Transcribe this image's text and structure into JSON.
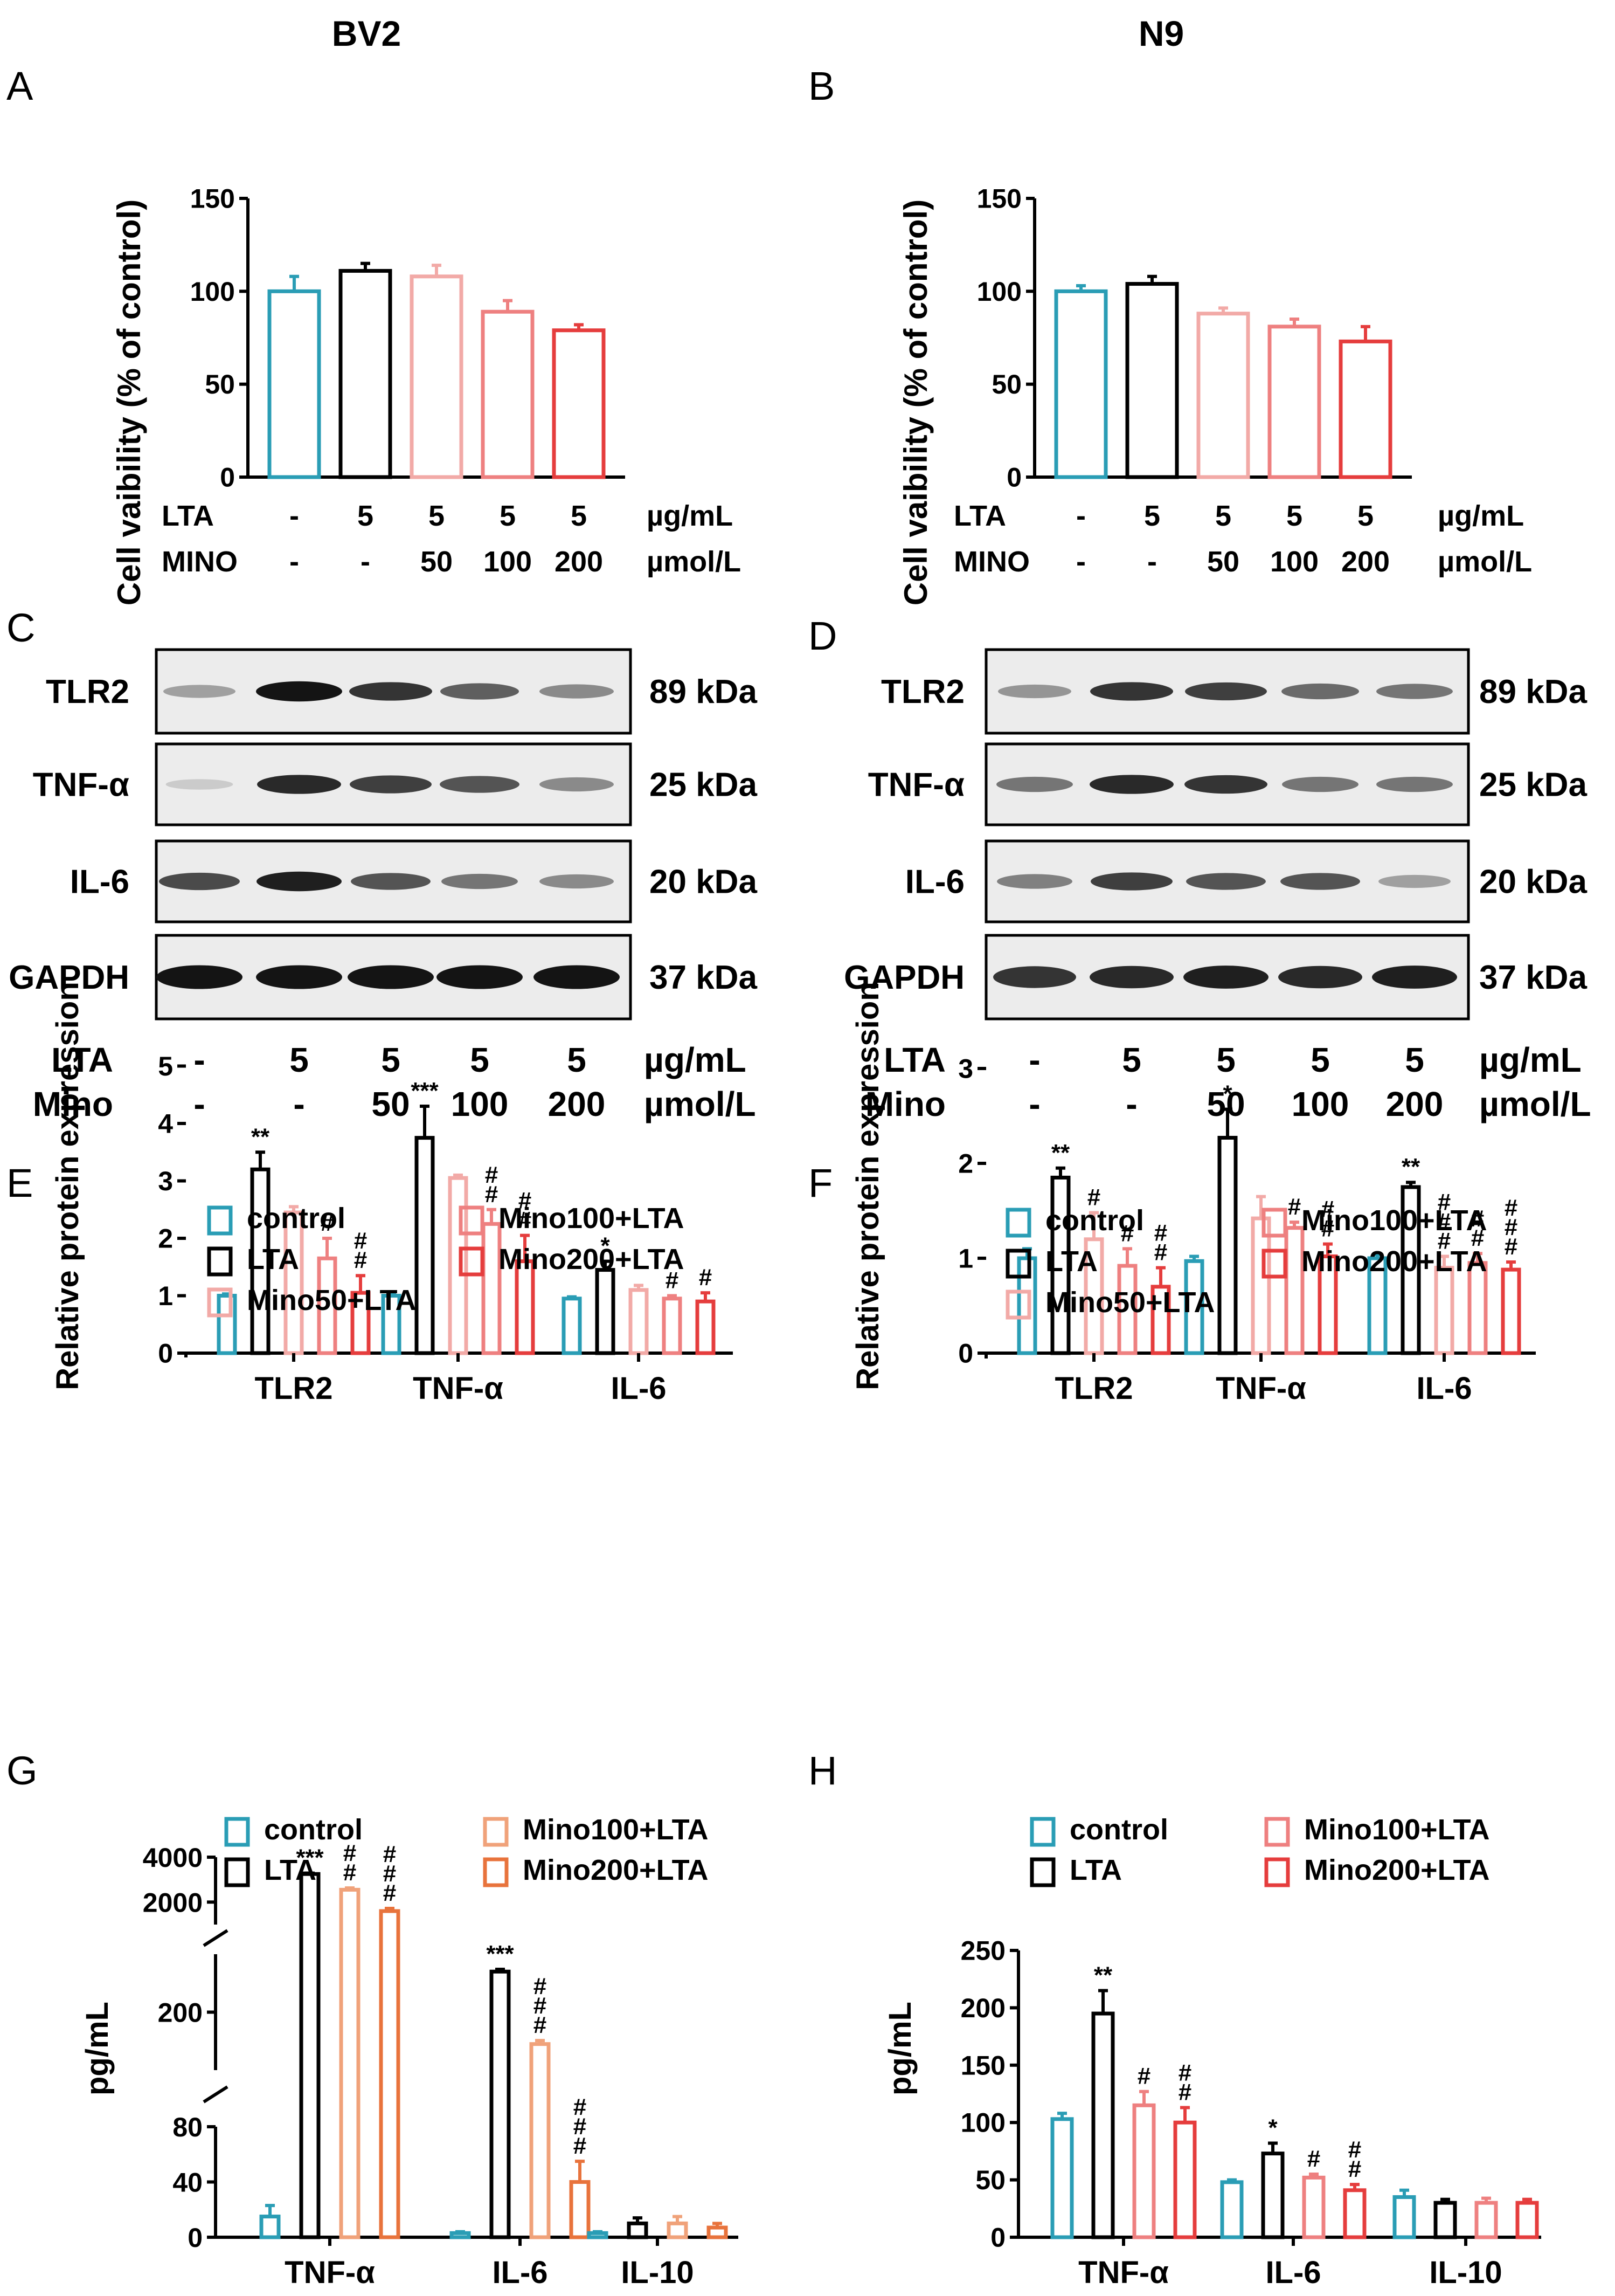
{
  "colors": {
    "control": "#2a9db5",
    "lta": "#000000",
    "mino50": "#f2aaa7",
    "mino100": "#ee8080",
    "mino200": "#e53d3d",
    "mino100_orange": "#f0a27a",
    "mino200_orange": "#e8733c",
    "blot_bg": "#ececec",
    "band": "#141414"
  },
  "columns": {
    "left_title": "BV2",
    "right_title": "N9"
  },
  "panel_letters": [
    "A",
    "B",
    "C",
    "D",
    "E",
    "F",
    "G",
    "H"
  ],
  "treatment_rows": {
    "AB": {
      "row1_label": "LTA",
      "row1_values": [
        "-",
        "5",
        "5",
        "5",
        "5"
      ],
      "row1_unit": "µg/mL",
      "row2_label": "MINO",
      "row2_values": [
        "-",
        "-",
        "50",
        "100",
        "200"
      ],
      "row2_unit": "µmol/L"
    },
    "CD": {
      "row1_label": "LTA",
      "row1_values": [
        "-",
        "5",
        "5",
        "5",
        "5"
      ],
      "row1_unit": "µg/mL",
      "row2_label": "Mino",
      "row2_values": [
        "-",
        "-",
        "50",
        "100",
        "200"
      ],
      "row2_unit": "µmol/L"
    }
  },
  "blots": {
    "proteins": [
      "TLR2",
      "TNF-α",
      "IL-6",
      "GAPDH"
    ],
    "sizes": [
      "89 kDa",
      "25 kDa",
      "20 kDa",
      "37 kDa"
    ],
    "C_intensity": [
      [
        0.35,
        1.0,
        0.85,
        0.65,
        0.45
      ],
      [
        0.12,
        0.9,
        0.8,
        0.7,
        0.45
      ],
      [
        0.75,
        0.95,
        0.7,
        0.55,
        0.45
      ],
      [
        1.0,
        1.0,
        1.0,
        1.0,
        1.0
      ]
    ],
    "D_intensity": [
      [
        0.4,
        0.85,
        0.8,
        0.6,
        0.55
      ],
      [
        0.55,
        0.9,
        0.85,
        0.55,
        0.55
      ],
      [
        0.5,
        0.8,
        0.7,
        0.7,
        0.35
      ],
      [
        0.85,
        0.9,
        0.95,
        0.9,
        0.95
      ]
    ]
  },
  "legend_labels": {
    "control": "control",
    "lta": "LTA",
    "mino50": "Mino50+LTA",
    "mino100": "Mino100+LTA",
    "mino200": "Mino200+LTA"
  },
  "chart_data": [
    {
      "panel": "A",
      "type": "bar",
      "title": "BV2",
      "ylabel": "Cell vaibility (% of control)",
      "ylim": [
        0,
        150
      ],
      "yticks": [
        0,
        50,
        100,
        150
      ],
      "categories": [
        "control",
        "LTA",
        "Mino50+LTA",
        "Mino100+LTA",
        "Mino200+LTA"
      ],
      "values": [
        100,
        111,
        108,
        89,
        79
      ],
      "errors": [
        8,
        4,
        6,
        6,
        3
      ]
    },
    {
      "panel": "B",
      "type": "bar",
      "title": "N9",
      "ylabel": "Cell vaibility (% of control)",
      "ylim": [
        0,
        150
      ],
      "yticks": [
        0,
        50,
        100,
        150
      ],
      "categories": [
        "control",
        "LTA",
        "Mino50+LTA",
        "Mino100+LTA",
        "Mino200+LTA"
      ],
      "values": [
        100,
        104,
        88,
        81,
        73
      ],
      "errors": [
        3,
        4,
        3,
        4,
        8
      ]
    },
    {
      "panel": "E",
      "type": "bar",
      "ylabel": "Relative protein expression",
      "ylim": [
        0,
        5
      ],
      "yticks": [
        0,
        1,
        2,
        3,
        4,
        5
      ],
      "groups": [
        "TLR2",
        "TNF-α",
        "IL-6"
      ],
      "legend": [
        "control",
        "LTA",
        "Mino50+LTA",
        "Mino100+LTA",
        "Mino200+LTA"
      ],
      "series": [
        {
          "name": "control",
          "values": [
            1.0,
            1.0,
            0.95
          ],
          "errors": [
            0.03,
            0.03,
            0.03
          ],
          "marks": [
            "",
            "",
            ""
          ]
        },
        {
          "name": "LTA",
          "values": [
            3.2,
            3.75,
            1.45
          ],
          "errors": [
            0.3,
            0.55,
            0.15
          ],
          "marks": [
            "**",
            "***",
            "*"
          ]
        },
        {
          "name": "Mino50+LTA",
          "values": [
            2.45,
            3.05,
            1.1
          ],
          "errors": [
            0.1,
            0.05,
            0.08
          ],
          "marks": [
            "",
            "",
            ""
          ]
        },
        {
          "name": "Mino100+LTA",
          "values": [
            1.65,
            2.25,
            0.95
          ],
          "errors": [
            0.35,
            0.25,
            0.05
          ],
          "marks": [
            "#",
            "##",
            "#"
          ]
        },
        {
          "name": "Mino200+LTA",
          "values": [
            1.05,
            1.6,
            0.9
          ],
          "errors": [
            0.3,
            0.45,
            0.15
          ],
          "marks": [
            "##",
            "##",
            "#"
          ]
        }
      ]
    },
    {
      "panel": "F",
      "type": "bar",
      "ylabel": "Relative protein expression",
      "ylim": [
        0,
        3
      ],
      "yticks": [
        0,
        1,
        2,
        3
      ],
      "groups": [
        "TLR2",
        "TNF-α",
        "IL-6"
      ],
      "legend": [
        "control",
        "LTA",
        "Mino50+LTA",
        "Mino100+LTA",
        "Mino200+LTA"
      ],
      "series": [
        {
          "name": "control",
          "values": [
            1.0,
            0.97,
            1.0
          ],
          "errors": [
            0.1,
            0.05,
            0.04
          ],
          "marks": [
            "",
            "",
            ""
          ]
        },
        {
          "name": "LTA",
          "values": [
            1.85,
            2.27,
            1.75
          ],
          "errors": [
            0.1,
            0.3,
            0.05
          ],
          "marks": [
            "**",
            "*",
            "**"
          ]
        },
        {
          "name": "Mino50+LTA",
          "values": [
            1.2,
            1.42,
            0.9
          ],
          "errors": [
            0.28,
            0.23,
            0.12
          ],
          "marks": [
            "#",
            "",
            "###"
          ]
        },
        {
          "name": "Mino100+LTA",
          "values": [
            0.92,
            1.32,
            0.95
          ],
          "errors": [
            0.18,
            0.06,
            0.1
          ],
          "marks": [
            "#",
            "#",
            "##"
          ]
        },
        {
          "name": "Mino200+LTA",
          "values": [
            0.7,
            1.02,
            0.88
          ],
          "errors": [
            0.2,
            0.13,
            0.08
          ],
          "marks": [
            "##",
            "##",
            "###"
          ]
        }
      ]
    },
    {
      "panel": "G",
      "type": "bar",
      "ylabel": "pg/mL",
      "axis_breaks": [
        {
          "range": [
            0,
            80
          ],
          "ticks": [
            0,
            40,
            80
          ]
        },
        {
          "range": [
            100,
            300
          ],
          "ticks": [
            200
          ]
        },
        {
          "range": [
            1000,
            4000
          ],
          "ticks": [
            2000,
            4000
          ]
        }
      ],
      "groups": [
        "TNF-α",
        "IL-6",
        "IL-10"
      ],
      "legend": [
        "control",
        "LTA",
        "Mino100+LTA",
        "Mino200+LTA"
      ],
      "series": [
        {
          "name": "control",
          "values": [
            15,
            3,
            3
          ],
          "errors": [
            8,
            1,
            1
          ],
          "marks": [
            "",
            "",
            ""
          ]
        },
        {
          "name": "LTA",
          "values": [
            3250,
            270,
            10
          ],
          "errors": [
            40,
            4,
            4
          ],
          "marks": [
            "***",
            "***",
            ""
          ]
        },
        {
          "name": "Mino100+LTA",
          "values": [
            2550,
            145,
            10
          ],
          "errors": [
            80,
            6,
            5
          ],
          "marks": [
            "##",
            "###",
            ""
          ]
        },
        {
          "name": "Mino200+LTA",
          "values": [
            1600,
            40,
            7
          ],
          "errors": [
            120,
            15,
            3
          ],
          "marks": [
            "###",
            "###",
            ""
          ]
        }
      ]
    },
    {
      "panel": "H",
      "type": "bar",
      "ylabel": "pg/mL",
      "ylim": [
        0,
        250
      ],
      "yticks": [
        0,
        50,
        100,
        150,
        200,
        250
      ],
      "groups": [
        "TNF-α",
        "IL-6",
        "IL-10"
      ],
      "legend": [
        "control",
        "LTA",
        "Mino100+LTA",
        "Mino200+LTA"
      ],
      "series": [
        {
          "name": "control",
          "values": [
            103,
            48,
            35
          ],
          "errors": [
            5,
            2,
            6
          ],
          "marks": [
            "",
            "",
            ""
          ]
        },
        {
          "name": "LTA",
          "values": [
            195,
            73,
            30
          ],
          "errors": [
            20,
            9,
            3
          ],
          "marks": [
            "**",
            "*",
            ""
          ]
        },
        {
          "name": "Mino100+LTA",
          "values": [
            115,
            52,
            30
          ],
          "errors": [
            12,
            3,
            4
          ],
          "marks": [
            "#",
            "#",
            ""
          ]
        },
        {
          "name": "Mino200+LTA",
          "values": [
            100,
            41,
            30
          ],
          "errors": [
            13,
            5,
            3
          ],
          "marks": [
            "##",
            "##",
            ""
          ]
        }
      ]
    }
  ]
}
